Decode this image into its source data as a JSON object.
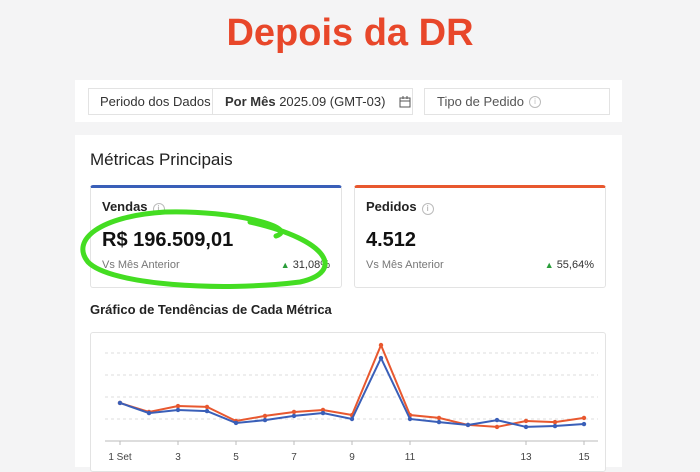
{
  "header": {
    "title": "Depois da DR"
  },
  "filters": {
    "period_label": "Periodo dos Dados",
    "period_mode": "Por Mês",
    "period_value": "2025.09 (GMT-03)",
    "order_type": "Tipo de Pedido"
  },
  "metrics": {
    "title": "Métricas Principais",
    "cards": [
      {
        "label": "Vendas",
        "value": "R$ 196.509,01",
        "compare_label": "Vs Mês Anterior",
        "change": "31,08%",
        "color": "#3a5fb8"
      },
      {
        "label": "Pedidos",
        "value": "4.512",
        "compare_label": "Vs Mês Anterior",
        "change": "55,64%",
        "color": "#e8582f"
      }
    ]
  },
  "chart_data": {
    "type": "line",
    "title": "Gráfico de Tendências de Cada Métrica",
    "categories": [
      "1 Set",
      null,
      "3",
      null,
      "5",
      null,
      "7",
      null,
      "9",
      null,
      "11",
      null,
      null,
      null,
      "13",
      null,
      "15"
    ],
    "series": [
      {
        "color": "#3a5fb8",
        "values": [
          1.73,
          1.27,
          1.41,
          1.36,
          0.82,
          0.95,
          1.14,
          1.27,
          1.0,
          3.77,
          1.0,
          0.86,
          0.73,
          0.95,
          0.64,
          0.68,
          0.77
        ]
      },
      {
        "color": "#e8582f",
        "values": [
          1.73,
          1.32,
          1.59,
          1.55,
          0.91,
          1.14,
          1.32,
          1.41,
          1.18,
          4.36,
          1.18,
          1.05,
          0.73,
          0.64,
          0.91,
          0.86,
          1.05
        ]
      }
    ],
    "ylim": [
      0,
      5
    ],
    "yticks": [
      1,
      2,
      3,
      4
    ],
    "grid": true
  }
}
